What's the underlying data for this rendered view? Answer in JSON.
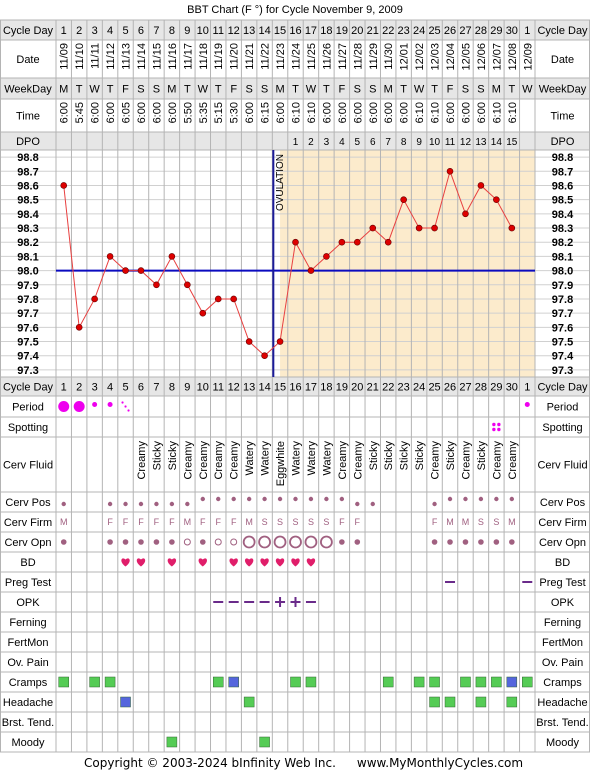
{
  "title": "BBT Chart (F °) for Cycle November 9, 2009",
  "footer": {
    "copyright": "Copyright © 2003-2024 bInfinity Web Inc.",
    "site": "www.MyMonthlyCycles.com"
  },
  "row_labels": {
    "cycle_day": "Cycle Day",
    "date": "Date",
    "weekday": "WeekDay",
    "time": "Time",
    "dpo": "DPO",
    "period": "Period",
    "spotting": "Spotting",
    "cerv_fluid": "Cerv Fluid",
    "cerv_pos": "Cerv Pos",
    "cerv_firm": "Cerv Firm",
    "cerv_opn": "Cerv Opn",
    "bd": "BD",
    "preg_test": "Preg Test",
    "opk": "OPK",
    "ferning": "Ferning",
    "fertmon": "FertMon",
    "ov_pain": "Ov. Pain",
    "cramps": "Cramps",
    "headache": "Headache",
    "brst_tend": "Brst. Tend.",
    "moody": "Moody"
  },
  "colors": {
    "grid": "#b4b4b4",
    "row_shade": "#e6e6e6",
    "luteal_bg": "#fcebcc",
    "coverline": "#0b0bbf",
    "ovulation_line": "#1a1a99",
    "temp_line": "#e84040",
    "temp_dot": "#dd0000",
    "period": "#ee00ee",
    "bd_heart": "#e01e6a",
    "cerv_mark": "#a06080",
    "preg_opk": "#6a2b8a",
    "green_box": "#55cc55",
    "blue_box": "#5566dd"
  },
  "ovulation_label": "OVULATION",
  "chart_data": {
    "type": "line",
    "title": "BBT Chart (F °) for Cycle November 9, 2009",
    "cycle_days": [
      1,
      2,
      3,
      4,
      5,
      6,
      7,
      8,
      9,
      10,
      11,
      12,
      13,
      14,
      15,
      16,
      17,
      18,
      19,
      20,
      21,
      22,
      23,
      24,
      25,
      26,
      27,
      28,
      29,
      30,
      1
    ],
    "dates": [
      "11/09",
      "11/10",
      "11/11",
      "11/12",
      "11/13",
      "11/14",
      "11/15",
      "11/16",
      "11/17",
      "11/18",
      "11/19",
      "11/20",
      "11/21",
      "11/22",
      "11/23",
      "11/24",
      "11/25",
      "11/26",
      "11/27",
      "11/28",
      "11/29",
      "11/30",
      "12/01",
      "12/02",
      "12/03",
      "12/04",
      "12/05",
      "12/06",
      "12/07",
      "12/08",
      "12/09"
    ],
    "weekdays": [
      "M",
      "T",
      "W",
      "T",
      "F",
      "S",
      "S",
      "M",
      "T",
      "W",
      "T",
      "F",
      "S",
      "S",
      "M",
      "T",
      "W",
      "T",
      "F",
      "S",
      "S",
      "M",
      "T",
      "W",
      "T",
      "F",
      "S",
      "S",
      "M",
      "T",
      "W"
    ],
    "times": [
      "6:00",
      "5:45",
      "6:00",
      "6:00",
      "6:05",
      "6:00",
      "6:00",
      "6:00",
      "5:50",
      "5:35",
      "5:15",
      "5:30",
      "6:00",
      "6:15",
      "6:00",
      "6:10",
      "6:10",
      "6:00",
      "6:00",
      "6:00",
      "6:00",
      "6:00",
      "6:00",
      "6:10",
      "6:10",
      "6:00",
      "6:00",
      "6:00",
      "6:10",
      "6:10",
      ""
    ],
    "dpo": [
      "",
      "",
      "",
      "",
      "",
      "",
      "",
      "",
      "",
      "",
      "",
      "",
      "",
      "",
      "",
      "1",
      "2",
      "3",
      "4",
      "5",
      "6",
      "7",
      "8",
      "9",
      "10",
      "11",
      "12",
      "13",
      "14",
      "15",
      ""
    ],
    "temperatures": [
      98.6,
      97.6,
      97.8,
      98.1,
      98.0,
      98.0,
      97.9,
      98.1,
      97.9,
      97.7,
      97.8,
      97.8,
      97.5,
      97.4,
      97.5,
      98.2,
      98.0,
      98.1,
      98.2,
      98.2,
      98.3,
      98.2,
      98.5,
      98.3,
      98.3,
      98.7,
      98.4,
      98.6,
      98.5,
      98.3,
      null
    ],
    "y_ticks": [
      "98.8",
      "98.7",
      "98.6",
      "98.5",
      "98.4",
      "98.3",
      "98.2",
      "98.1",
      "98.0",
      "97.9",
      "97.8",
      "97.7",
      "97.6",
      "97.5",
      "97.4",
      "97.3"
    ],
    "ylim": [
      97.3,
      98.8
    ],
    "coverline": 98.0,
    "ovulation_day": 15,
    "period": {
      "1": "large",
      "2": "large",
      "3": "small",
      "4": "small",
      "5": "spot",
      "31": "small"
    },
    "spotting": [
      29
    ],
    "cerv_fluid": {
      "6": "Creamy",
      "7": "Sticky",
      "8": "Sticky",
      "9": "Creamy",
      "10": "Creamy",
      "11": "Creamy",
      "12": "Creamy",
      "13": "Watery",
      "14": "Watery",
      "15": "Eggwhite",
      "16": "Watery",
      "17": "Watery",
      "18": "Watery",
      "19": "Creamy",
      "20": "Creamy",
      "21": "Sticky",
      "22": "Sticky",
      "23": "Sticky",
      "24": "Sticky",
      "25": "Creamy",
      "26": "Sticky",
      "27": "Creamy",
      "28": "Sticky",
      "29": "Creamy",
      "30": "Creamy"
    },
    "cerv_pos": {
      "1": "low",
      "4": "low",
      "5": "low",
      "6": "low",
      "7": "low",
      "8": "low",
      "9": "low",
      "10": "high",
      "11": "high",
      "12": "high",
      "13": "high",
      "14": "high",
      "15": "high",
      "16": "high",
      "17": "high",
      "18": "high",
      "19": "high",
      "20": "low",
      "21": "low",
      "25": "low",
      "26": "high",
      "27": "high",
      "28": "high",
      "29": "high",
      "30": "high"
    },
    "cerv_firm": {
      "1": "M",
      "4": "F",
      "5": "F",
      "6": "F",
      "7": "F",
      "8": "F",
      "9": "M",
      "10": "F",
      "11": "F",
      "12": "F",
      "13": "M",
      "14": "S",
      "15": "S",
      "16": "S",
      "17": "S",
      "18": "S",
      "19": "F",
      "20": "F",
      "25": "F",
      "26": "M",
      "27": "M",
      "28": "S",
      "29": "S",
      "30": "M"
    },
    "cerv_opn": {
      "1": "closed",
      "4": "closed",
      "5": "closed",
      "6": "closed",
      "7": "closed",
      "8": "closed",
      "9": "medium",
      "10": "closed",
      "11": "medium",
      "12": "medium",
      "13": "open",
      "14": "open",
      "15": "open",
      "16": "open",
      "17": "open",
      "18": "open",
      "19": "closed",
      "20": "closed",
      "25": "closed",
      "26": "closed",
      "27": "closed",
      "28": "closed",
      "29": "closed",
      "30": "closed"
    },
    "bd": [
      5,
      6,
      8,
      10,
      12,
      13,
      14,
      15,
      16,
      17
    ],
    "preg_test": [
      26,
      31
    ],
    "opk": {
      "11": "neg",
      "12": "neg",
      "13": "neg",
      "14": "neg",
      "15": "pos",
      "16": "pos",
      "17": "neg"
    },
    "cramps": {
      "1": "green",
      "3": "green",
      "4": "green",
      "11": "green",
      "12": "blue",
      "16": "green",
      "17": "green",
      "22": "green",
      "24": "green",
      "25": "green",
      "27": "green",
      "28": "green",
      "29": "green",
      "30": "blue",
      "31": "green"
    },
    "headache": {
      "5": "blue",
      "13": "green",
      "25": "green",
      "26": "green",
      "28": "green",
      "30": "green"
    },
    "moody": {
      "8": "green",
      "14": "green"
    }
  }
}
